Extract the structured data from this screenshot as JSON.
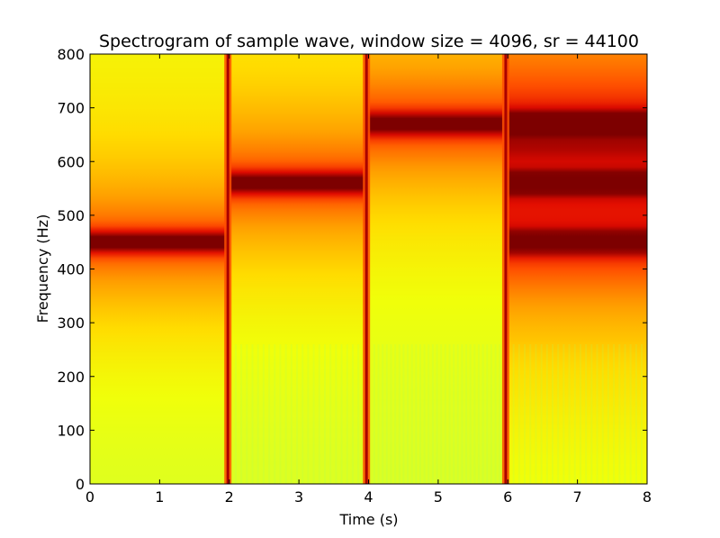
{
  "chart_data": {
    "type": "heatmap",
    "title": "Spectrogram of sample wave, window size = 4096, sr = 44100",
    "xlabel": "Time (s)",
    "ylabel": "Frequency (Hz)",
    "xlim": [
      0,
      8
    ],
    "ylim": [
      0,
      800
    ],
    "xticks": [
      0,
      1,
      2,
      3,
      4,
      5,
      6,
      7,
      8
    ],
    "yticks": [
      0,
      100,
      200,
      300,
      400,
      500,
      600,
      700,
      800
    ],
    "colormap": "jet (upper range)",
    "segments": [
      {
        "t_start": 0,
        "t_end": 1.98,
        "peak_frequencies_hz": [
          450
        ]
      },
      {
        "t_start": 1.98,
        "t_end": 3.97,
        "peak_frequencies_hz": [
          560
        ]
      },
      {
        "t_start": 3.97,
        "t_end": 5.97,
        "peak_frequencies_hz": [
          670
        ]
      },
      {
        "t_start": 5.97,
        "t_end": 8,
        "peak_frequencies_hz": [
          450,
          560,
          670
        ]
      }
    ],
    "transitions_s": [
      1.98,
      3.97,
      5.97
    ]
  }
}
